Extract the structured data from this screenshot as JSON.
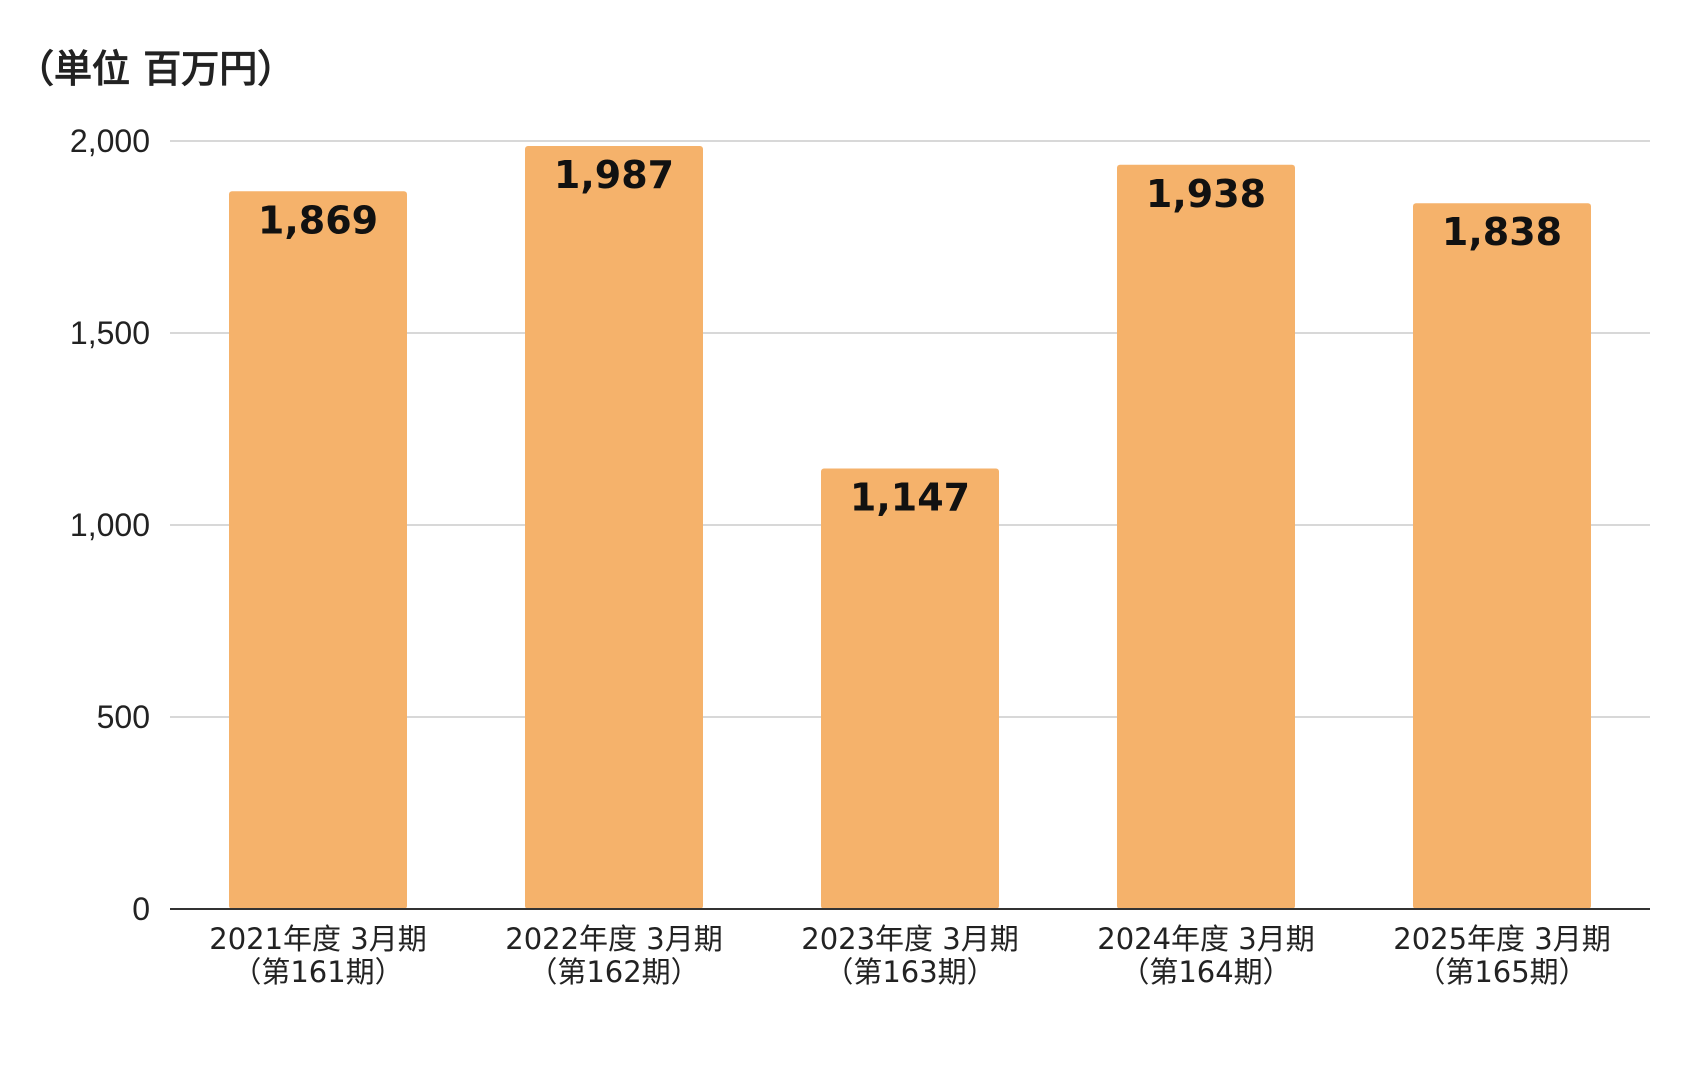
{
  "chart_data": {
    "type": "bar",
    "unit_label": "（単位 百万円）",
    "categories": [
      [
        "2021年度 3月期",
        "（第161期）"
      ],
      [
        "2022年度 3月期",
        "（第162期）"
      ],
      [
        "2023年度 3月期",
        "（第163期）"
      ],
      [
        "2024年度 3月期",
        "（第164期）"
      ],
      [
        "2025年度 3月期",
        "（第165期）"
      ]
    ],
    "values": [
      1869,
      1987,
      1147,
      1938,
      1838
    ],
    "data_labels": [
      "1,869",
      "1,987",
      "1,147",
      "1,938",
      "1,838"
    ],
    "ylim": [
      0,
      2000
    ],
    "yticks": [
      0,
      500,
      1000,
      1500,
      2000
    ],
    "ytick_labels": [
      "0",
      "500",
      "1,000",
      "1,500",
      "2,000"
    ],
    "grid": true,
    "bar_color": "#F5B26B",
    "grid_color": "#CCCCCC",
    "axis_color": "#333333"
  }
}
